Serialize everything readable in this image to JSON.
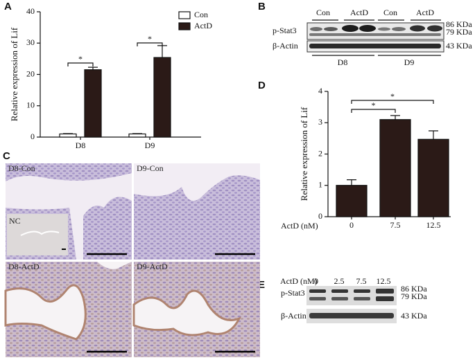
{
  "panel_labels": [
    "A",
    "B",
    "C",
    "D",
    "E"
  ],
  "chart_data": [
    {
      "type": "bar",
      "ylabel": "Relative expression of Lif",
      "categories": [
        "D8",
        "D9"
      ],
      "series": [
        {
          "name": "Con",
          "color": "#ffffff",
          "values": [
            1,
            1
          ],
          "errors": [
            0.1,
            0.1
          ]
        },
        {
          "name": "ActD",
          "color": "#2b1a17",
          "values": [
            21.5,
            25.4
          ],
          "errors": [
            0.8,
            3.8
          ]
        }
      ],
      "ylim": [
        0,
        40
      ],
      "yticks": [
        0,
        10,
        20,
        30,
        40
      ],
      "annotations": [
        "*",
        "*"
      ]
    },
    {
      "type": "bar",
      "ylabel": "Relative expression of Lif",
      "xlabel": "ActD (nM)",
      "categories": [
        "0",
        "7.5",
        "12.5"
      ],
      "values": [
        1.0,
        3.1,
        2.47
      ],
      "errors": [
        0.18,
        0.13,
        0.27
      ],
      "color": "#2b1a17",
      "ylim": [
        0,
        4
      ],
      "yticks": [
        0,
        1,
        2,
        3,
        4
      ],
      "annotations": [
        "*",
        "*"
      ]
    }
  ],
  "blot_b": {
    "lanes": [
      "Con",
      "ActD",
      "Con",
      "ActD"
    ],
    "rows": [
      "p-Stat3",
      "β-Actin"
    ],
    "sizes": [
      "86 KDa",
      "79 KDa",
      "43 KDa"
    ],
    "groups": [
      "D8",
      "D9"
    ]
  },
  "blot_e": {
    "header": "ActD (nM)",
    "lanes": [
      "0",
      "2.5",
      "7.5",
      "12.5"
    ],
    "rows": [
      "p-Stat3",
      "β-Actin"
    ],
    "sizes": [
      "86 KDa",
      "79 KDa",
      "43 KDa"
    ]
  },
  "micrographs": [
    "D8-Con",
    "D9-Con",
    "NC",
    "D8-ActD",
    "D9-ActD"
  ]
}
